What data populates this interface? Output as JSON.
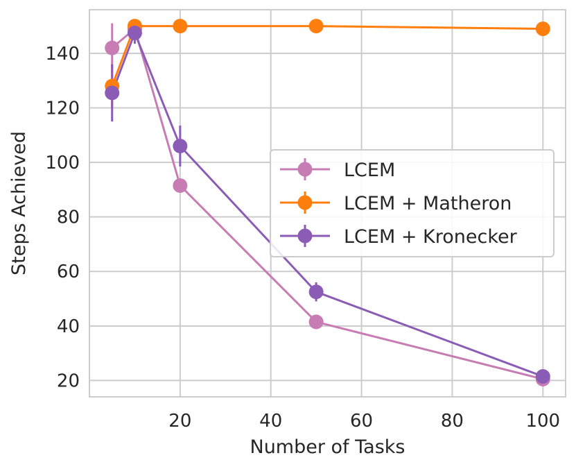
{
  "chart_data": {
    "type": "line",
    "title": "",
    "xlabel": "Number of Tasks",
    "ylabel": "Steps Achieved",
    "xlim": [
      0,
      105
    ],
    "ylim": [
      14,
      156
    ],
    "xticks": [
      20,
      40,
      60,
      80,
      100
    ],
    "yticks": [
      20,
      40,
      60,
      80,
      100,
      120,
      140
    ],
    "x": [
      5,
      10,
      20,
      50,
      100
    ],
    "grid": true,
    "legend_position": "center-right",
    "series": [
      {
        "name": "LCEM",
        "color": "#c77cb3",
        "values": [
          142,
          149,
          91.5,
          41.5,
          20.5
        ],
        "errors": [
          9,
          0,
          0,
          0,
          0
        ]
      },
      {
        "name": "LCEM + Matheron",
        "color": "#ff7f0e",
        "values": [
          128,
          150,
          150,
          150,
          149
        ],
        "errors": [
          8,
          0,
          0,
          0,
          0
        ]
      },
      {
        "name": "LCEM + Kronecker",
        "color": "#8b5cb6",
        "values": [
          125.5,
          147.5,
          106,
          52.5,
          21.5
        ],
        "errors": [
          10.5,
          4,
          7.5,
          3.5,
          0
        ]
      }
    ]
  }
}
